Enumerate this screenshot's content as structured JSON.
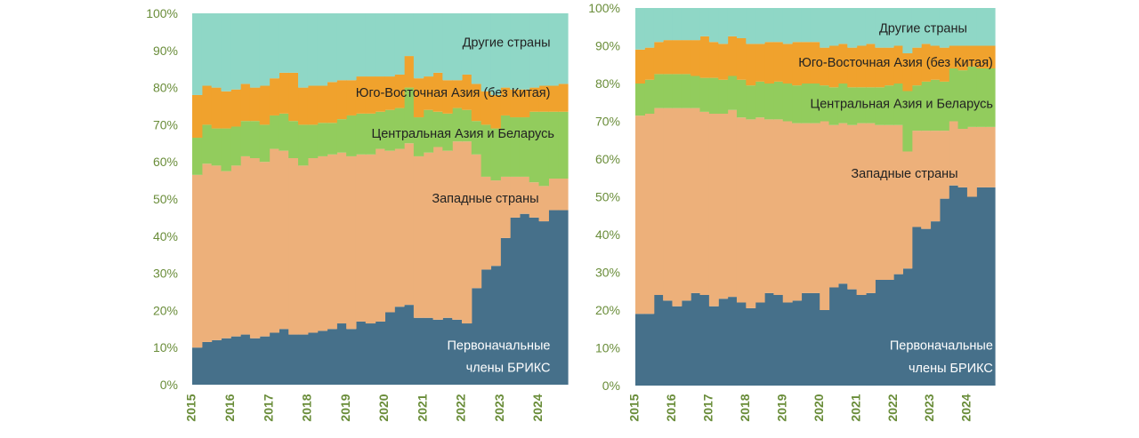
{
  "colors": {
    "brics": "#46708a",
    "western": "#edb07a",
    "central_asia": "#92cc5d",
    "se_asia": "#f0a22d",
    "other": "#8fd7c6",
    "tick_text": "#6a8d3a",
    "label_dark": "#222222",
    "label_light": "#ffffff"
  },
  "chart_data": [
    {
      "type": "area",
      "stacked": true,
      "step": true,
      "title": "",
      "xlabel": "",
      "ylabel": "",
      "ylim": [
        0,
        100
      ],
      "yticks": [
        "0%",
        "10%",
        "20%",
        "30%",
        "40%",
        "50%",
        "60%",
        "70%",
        "80%",
        "90%",
        "100%"
      ],
      "xlim": [
        2015.0,
        2024.75
      ],
      "xticks": [
        "2015",
        "2016",
        "2017",
        "2018",
        "2019",
        "2020",
        "2021",
        "2022",
        "2023",
        "2024"
      ],
      "x": [
        2015.0,
        2015.25,
        2015.5,
        2015.75,
        2016.0,
        2016.25,
        2016.5,
        2016.75,
        2017.0,
        2017.25,
        2017.5,
        2017.75,
        2018.0,
        2018.25,
        2018.5,
        2018.75,
        2019.0,
        2019.25,
        2019.5,
        2019.75,
        2020.0,
        2020.25,
        2020.5,
        2020.75,
        2021.0,
        2021.25,
        2021.5,
        2021.75,
        2022.0,
        2022.25,
        2022.5,
        2022.75,
        2023.0,
        2023.25,
        2023.5,
        2023.75,
        2024.0,
        2024.25,
        2024.5
      ],
      "series": [
        {
          "name": "Первоначальные члены БРИКС",
          "color_key": "brics",
          "values": [
            10,
            11.5,
            12,
            12.5,
            13,
            13.5,
            12.5,
            13,
            14,
            15,
            13.5,
            13.5,
            14,
            14.5,
            15,
            16.5,
            15,
            17,
            16.5,
            17,
            19.5,
            21,
            21.5,
            18,
            18,
            17.5,
            18,
            17.5,
            16.5,
            26,
            31,
            32,
            39.5,
            45,
            46,
            45,
            44,
            47,
            47
          ]
        },
        {
          "name": "Западные страны",
          "color_key": "western",
          "values": [
            46.5,
            48,
            47,
            45,
            46,
            48,
            48.5,
            47,
            49.5,
            48,
            47.5,
            45.5,
            47,
            47,
            47,
            46,
            46.5,
            45,
            45.5,
            46.5,
            43.5,
            42.5,
            43.5,
            43.5,
            44.5,
            46.5,
            45,
            48,
            49,
            36,
            25,
            23,
            16.5,
            11,
            10,
            9.5,
            9.5,
            8.5,
            8.5
          ]
        },
        {
          "name": "Центральная Азия и Беларусь",
          "color_key": "central_asia",
          "values": [
            10,
            10.5,
            10,
            11.5,
            10.5,
            9.5,
            10,
            10,
            9,
            10,
            10,
            11,
            9,
            9,
            8.5,
            9,
            11,
            11,
            11,
            10,
            11,
            11,
            15,
            10.5,
            11.5,
            9.5,
            10,
            9,
            8.5,
            9,
            14,
            14,
            16.5,
            16,
            16,
            19,
            20,
            18,
            18
          ]
        },
        {
          "name": "Юго-Восточная Азия (без Китая)",
          "color_key": "se_asia",
          "values": [
            11.5,
            10.5,
            11,
            10,
            10,
            10,
            9,
            10.5,
            10,
            11,
            13,
            10,
            10.5,
            10,
            11,
            10.5,
            9.5,
            10,
            10,
            9.5,
            9,
            9,
            8.5,
            10.5,
            9,
            10.5,
            9,
            7.5,
            9.5,
            10,
            9,
            9,
            7.5,
            7.5,
            7.5,
            6.5,
            7,
            7,
            7.5
          ]
        },
        {
          "name": "Другие страны",
          "color_key": "other",
          "values": [
            22,
            19.5,
            20,
            21,
            20.5,
            19,
            20,
            19.5,
            17.5,
            16,
            16,
            20,
            19.5,
            19.5,
            18.5,
            18,
            18,
            17,
            17,
            17,
            17,
            16.5,
            11.5,
            17.5,
            17,
            16,
            18,
            18,
            16.5,
            19,
            21,
            22,
            20,
            20.5,
            20.5,
            20,
            19.5,
            19.5,
            19
          ]
        }
      ],
      "labels": [
        {
          "text": "Другие страны",
          "series": 4,
          "anchor": "end",
          "x": 2024.3,
          "y": 91,
          "tone": "dark"
        },
        {
          "text": "Юго-Восточная Азия (без Китая)",
          "series": 3,
          "anchor": "end",
          "x": 2024.3,
          "y": 77.5,
          "tone": "dark"
        },
        {
          "text": "Центральная Азия и Беларусь",
          "series": 2,
          "anchor": "end",
          "x": 2024.4,
          "y": 66.5,
          "tone": "dark"
        },
        {
          "text": "Западные страны",
          "series": 1,
          "anchor": "end",
          "x": 2024.0,
          "y": 49,
          "tone": "dark"
        },
        {
          "text": "Первоначальные",
          "series": 0,
          "anchor": "end",
          "x": 2024.3,
          "y": 9.5,
          "tone": "light"
        },
        {
          "text": "члены БРИКС",
          "series": 0,
          "anchor": "end",
          "x": 2024.3,
          "y": 3.5,
          "tone": "light"
        }
      ]
    },
    {
      "type": "area",
      "stacked": true,
      "step": true,
      "title": "",
      "xlabel": "",
      "ylabel": "",
      "ylim": [
        0,
        100
      ],
      "yticks": [
        "0%",
        "10%",
        "20%",
        "30%",
        "40%",
        "50%",
        "60%",
        "70%",
        "80%",
        "90%",
        "100%"
      ],
      "xlim": [
        2015.0,
        2024.75
      ],
      "xticks": [
        "2015",
        "2016",
        "2017",
        "2018",
        "2019",
        "2020",
        "2021",
        "2022",
        "2023",
        "2024"
      ],
      "x": [
        2015.0,
        2015.25,
        2015.5,
        2015.75,
        2016.0,
        2016.25,
        2016.5,
        2016.75,
        2017.0,
        2017.25,
        2017.5,
        2017.75,
        2018.0,
        2018.25,
        2018.5,
        2018.75,
        2019.0,
        2019.25,
        2019.5,
        2019.75,
        2020.0,
        2020.25,
        2020.5,
        2020.75,
        2021.0,
        2021.25,
        2021.5,
        2021.75,
        2022.0,
        2022.25,
        2022.5,
        2022.75,
        2023.0,
        2023.25,
        2023.5,
        2023.75,
        2024.0,
        2024.25,
        2024.5
      ],
      "series": [
        {
          "name": "Первоначальные члены БРИКС",
          "color_key": "brics",
          "values": [
            19,
            19,
            24,
            22.5,
            21,
            22.5,
            24.5,
            24,
            21,
            23,
            23.5,
            22,
            20.5,
            22,
            24.5,
            24,
            22,
            22.5,
            24.5,
            24.5,
            20,
            26,
            27,
            25.5,
            24,
            24.5,
            28,
            28,
            29.5,
            31,
            42,
            41.5,
            43.5,
            49.5,
            53,
            52.5,
            50,
            52.5,
            52.5
          ]
        },
        {
          "name": "Западные страны",
          "color_key": "western",
          "values": [
            52.5,
            53,
            49.5,
            51,
            52.5,
            51,
            49,
            48.5,
            51,
            49,
            49.5,
            49,
            50,
            49,
            46,
            46.5,
            48,
            47,
            45,
            45,
            50,
            43,
            42.5,
            43.5,
            45.5,
            45,
            41,
            41,
            39.5,
            31,
            25.5,
            26,
            24,
            18,
            17,
            15.5,
            18.5,
            16,
            16
          ]
        },
        {
          "name": "Центральная Азия и Беларусь",
          "color_key": "central_asia",
          "values": [
            8.5,
            9,
            9,
            9,
            9,
            9,
            8.5,
            9,
            9.5,
            9,
            9,
            10,
            9,
            9.5,
            9.5,
            10,
            10,
            10,
            10.5,
            10.5,
            9.5,
            10,
            10.5,
            10,
            9.5,
            9.5,
            10,
            10.5,
            11,
            16,
            12,
            13,
            13.5,
            13,
            14,
            15.5,
            16,
            15.5,
            15.5
          ]
        },
        {
          "name": "Юго-Восточная Азия (без Китая)",
          "color_key": "se_asia",
          "values": [
            9,
            8.5,
            8.5,
            9,
            9,
            9,
            9.5,
            11,
            9.5,
            9.5,
            10.5,
            11,
            11,
            10,
            11,
            10.5,
            10.5,
            11.5,
            11,
            11,
            10,
            11,
            10.5,
            10.5,
            11,
            11.5,
            10.5,
            10,
            10,
            10,
            10,
            10,
            9,
            9,
            6,
            6.5,
            5.5,
            6,
            6
          ]
        },
        {
          "name": "Другие страны",
          "color_key": "other",
          "values": [
            11,
            10.5,
            9,
            8.5,
            8.5,
            8.5,
            8.5,
            7.5,
            9,
            9.5,
            7.5,
            8,
            9.5,
            9.5,
            9,
            9,
            9.5,
            9,
            9,
            9,
            10.5,
            10,
            9.5,
            10.5,
            10,
            9.5,
            10.5,
            10.5,
            10,
            12,
            10.5,
            9.5,
            10,
            10.5,
            10,
            10,
            10,
            10,
            10
          ]
        }
      ],
      "labels": [
        {
          "text": "Другие страны",
          "series": 4,
          "anchor": "end",
          "x": 2024.0,
          "y": 93.5,
          "tone": "dark"
        },
        {
          "text": "Юго-Восточная Азия (без Китая)",
          "series": 3,
          "anchor": "end",
          "x": 2024.7,
          "y": 84.5,
          "tone": "dark"
        },
        {
          "text": "Центральная Азия и Беларусь",
          "series": 2,
          "anchor": "end",
          "x": 2024.7,
          "y": 73.5,
          "tone": "dark"
        },
        {
          "text": "Западные страны",
          "series": 1,
          "anchor": "end",
          "x": 2023.75,
          "y": 55,
          "tone": "dark"
        },
        {
          "text": "Первоначальные",
          "series": 0,
          "anchor": "end",
          "x": 2024.7,
          "y": 9.5,
          "tone": "light"
        },
        {
          "text": "члены БРИКС",
          "series": 0,
          "anchor": "end",
          "x": 2024.7,
          "y": 3.5,
          "tone": "light"
        }
      ]
    }
  ]
}
